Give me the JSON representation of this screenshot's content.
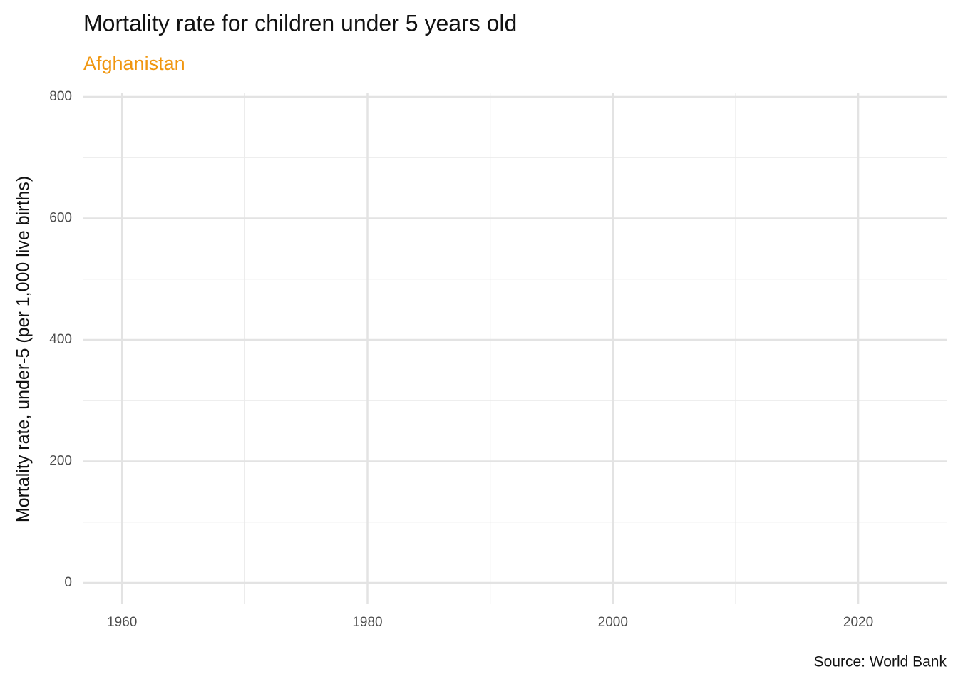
{
  "chart_data": {
    "type": "line",
    "title": "Mortality rate for children under 5 years old",
    "subtitle": "Afghanistan",
    "y_label": "Mortality rate, under-5 (per 1,000 live births)",
    "caption": "Source: World Bank",
    "series": [],
    "xlim": [
      1956.85,
      2027.2
    ],
    "xticks": [
      1960,
      1980,
      2000,
      2020
    ],
    "x_minor_ticks": [
      1970,
      1990,
      2010
    ],
    "ylim": [
      -35.2,
      807
    ],
    "yticks": [
      0,
      200,
      400,
      600,
      800
    ],
    "y_minor_ticks": [
      100,
      300,
      500,
      700
    ],
    "grid": true,
    "subtitle_color": "#f0960f"
  }
}
